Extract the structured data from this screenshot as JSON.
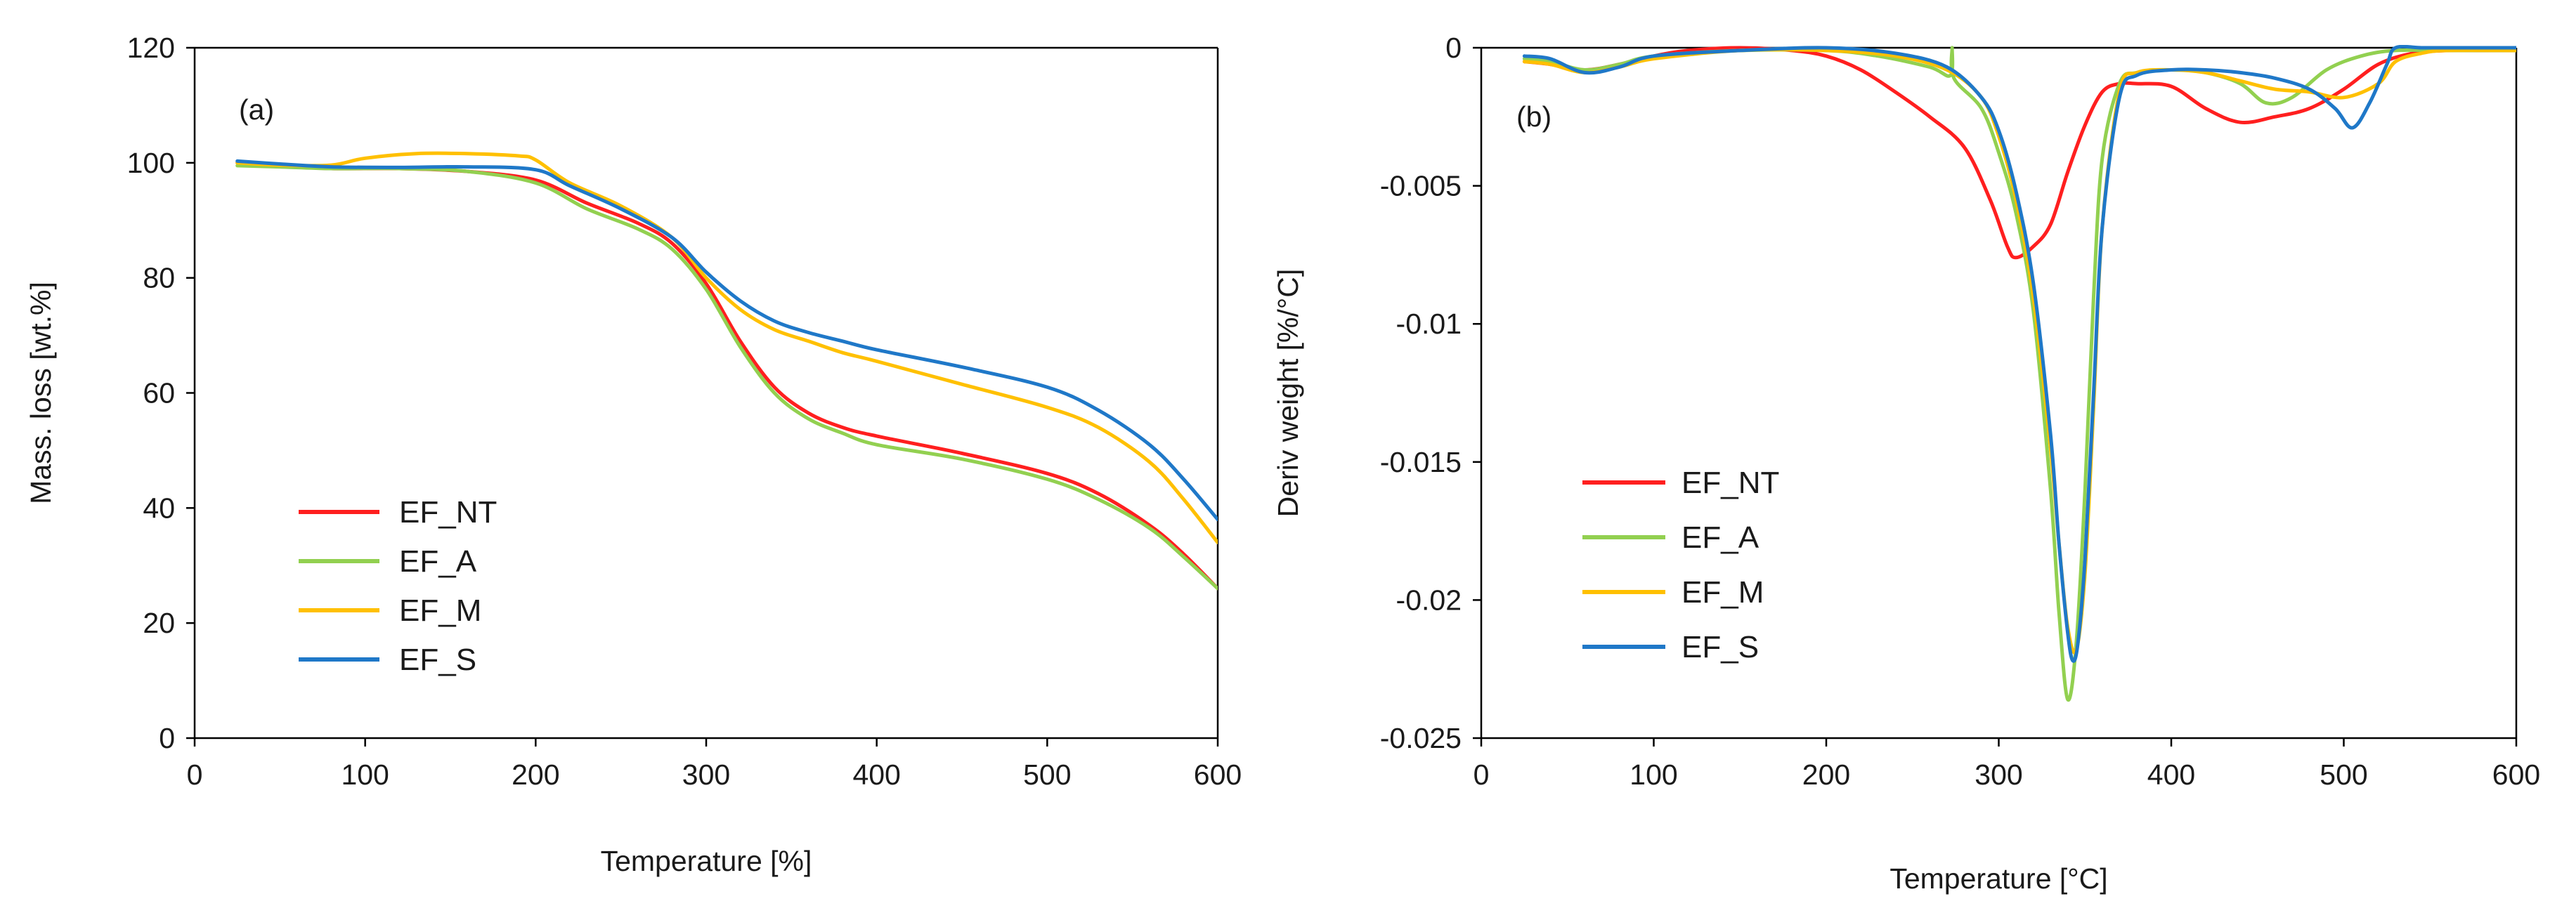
{
  "chart_data": [
    {
      "type": "line",
      "panel_label": "(a)",
      "xlabel": "Temperature [%]",
      "ylabel": "Mass. loss [wt.%]",
      "xlim": [
        0,
        600
      ],
      "ylim": [
        0,
        120
      ],
      "xticks": [
        0,
        100,
        200,
        300,
        400,
        500,
        600
      ],
      "yticks": [
        0,
        20,
        40,
        60,
        80,
        100,
        120
      ],
      "grid": false,
      "legend_position": "lower-left",
      "series": [
        {
          "name": "EF_NT",
          "color": "#ff1f1f",
          "x": [
            25,
            50,
            80,
            120,
            160,
            200,
            230,
            260,
            280,
            300,
            320,
            340,
            360,
            380,
            400,
            450,
            500,
            530,
            560,
            580,
            600
          ],
          "y": [
            100,
            99.5,
            99,
            99,
            98.5,
            97,
            93,
            89.5,
            86,
            79,
            69,
            61,
            56.5,
            54,
            52.5,
            49.5,
            46,
            42.5,
            37,
            32,
            26
          ]
        },
        {
          "name": "EF_A",
          "color": "#92d050",
          "x": [
            25,
            50,
            80,
            120,
            160,
            200,
            230,
            260,
            280,
            300,
            320,
            340,
            360,
            380,
            400,
            450,
            500,
            530,
            560,
            580,
            600
          ],
          "y": [
            99.5,
            99.3,
            99,
            99,
            98.5,
            96.5,
            92,
            88.5,
            85,
            78,
            68,
            60,
            55.5,
            53,
            51,
            48.5,
            45,
            41.5,
            36.5,
            31.5,
            26
          ]
        },
        {
          "name": "EF_M",
          "color": "#ffc000",
          "x": [
            25,
            50,
            80,
            100,
            130,
            160,
            190,
            200,
            220,
            250,
            280,
            300,
            320,
            340,
            360,
            380,
            400,
            450,
            500,
            530,
            560,
            580,
            600
          ],
          "y": [
            100,
            99.6,
            99.6,
            100.8,
            101.6,
            101.6,
            101.2,
            100.5,
            96.5,
            92.5,
            87,
            80,
            74.5,
            71,
            69,
            67,
            65.5,
            61.5,
            57.5,
            54,
            48,
            41.5,
            34
          ]
        },
        {
          "name": "EF_S",
          "color": "#1f78c8",
          "x": [
            25,
            50,
            80,
            120,
            160,
            200,
            220,
            250,
            280,
            300,
            320,
            340,
            360,
            380,
            400,
            450,
            500,
            530,
            560,
            580,
            600
          ],
          "y": [
            100.3,
            99.8,
            99.3,
            99.2,
            99.3,
            98.8,
            96,
            92,
            87,
            81,
            76,
            72.5,
            70.5,
            69,
            67.5,
            64.5,
            61,
            57,
            51,
            45,
            38
          ]
        }
      ]
    },
    {
      "type": "line",
      "panel_label": "(b)",
      "xlabel": "Temperature [°C]",
      "ylabel": "Deriv weight [%/°C]",
      "xlim": [
        0,
        600
      ],
      "ylim": [
        -0.025,
        0
      ],
      "xticks": [
        0,
        100,
        200,
        300,
        400,
        500,
        600
      ],
      "yticks": [
        0,
        -0.005,
        -0.01,
        -0.015,
        -0.02,
        -0.025
      ],
      "ytick_labels": [
        "0",
        "-0.005",
        "-0.01",
        "-0.015",
        "-0.02",
        "-0.025"
      ],
      "grid": false,
      "legend_position": "lower-left",
      "series": [
        {
          "name": "EF_NT",
          "color": "#ff1f1f",
          "x": [
            25,
            40,
            60,
            80,
            100,
            120,
            150,
            180,
            200,
            220,
            240,
            260,
            280,
            295,
            305,
            310,
            320,
            330,
            340,
            350,
            360,
            370,
            380,
            400,
            420,
            440,
            460,
            480,
            500,
            520,
            540,
            560,
            580,
            600
          ],
          "y": [
            -0.0005,
            -0.0006,
            -0.0008,
            -0.0006,
            -0.0003,
            -0.0001,
            0,
            -0.0001,
            -0.0003,
            -0.0008,
            -0.0016,
            -0.0025,
            -0.0036,
            -0.0055,
            -0.0072,
            -0.0076,
            -0.0072,
            -0.0064,
            -0.0045,
            -0.0028,
            -0.0016,
            -0.0013,
            -0.0013,
            -0.0014,
            -0.0022,
            -0.0027,
            -0.0025,
            -0.0022,
            -0.0015,
            -0.0006,
            -0.0002,
            -0.0001,
            -0.0001,
            -0.0001
          ]
        },
        {
          "name": "EF_A",
          "color": "#92d050",
          "x": [
            25,
            40,
            60,
            80,
            100,
            150,
            200,
            230,
            260,
            272,
            273,
            274,
            290,
            300,
            310,
            320,
            330,
            335,
            340,
            345,
            350,
            355,
            360,
            370,
            380,
            400,
            420,
            440,
            455,
            470,
            490,
            510,
            530,
            560,
            600
          ],
          "y": [
            -0.0004,
            -0.0005,
            -0.0008,
            -0.0006,
            -0.0003,
            -0.0001,
            -0.0001,
            -0.0003,
            -0.0007,
            -0.001,
            0,
            -0.0011,
            -0.0022,
            -0.0038,
            -0.006,
            -0.0095,
            -0.016,
            -0.0205,
            -0.0236,
            -0.0215,
            -0.016,
            -0.009,
            -0.004,
            -0.0013,
            -0.0009,
            -0.0008,
            -0.0009,
            -0.0013,
            -0.002,
            -0.0018,
            -0.0008,
            -0.0003,
            -0.0001,
            -0.0001,
            -0.0001
          ]
        },
        {
          "name": "EF_M",
          "color": "#ffc000",
          "x": [
            25,
            40,
            60,
            80,
            100,
            150,
            200,
            240,
            270,
            290,
            300,
            310,
            320,
            330,
            335,
            340,
            345,
            350,
            355,
            360,
            370,
            380,
            400,
            420,
            440,
            460,
            480,
            500,
            520,
            530,
            545,
            560,
            600
          ],
          "y": [
            -0.0005,
            -0.0006,
            -0.0009,
            -0.0007,
            -0.0004,
            -0.0001,
            -0.0001,
            -0.0003,
            -0.0008,
            -0.0018,
            -0.0032,
            -0.0055,
            -0.009,
            -0.0145,
            -0.018,
            -0.021,
            -0.0218,
            -0.019,
            -0.013,
            -0.0065,
            -0.0016,
            -0.0009,
            -0.0008,
            -0.0009,
            -0.0012,
            -0.0015,
            -0.0016,
            -0.0018,
            -0.0013,
            -0.0005,
            -0.0002,
            -0.0001,
            -0.0001
          ]
        },
        {
          "name": "EF_S",
          "color": "#1f78c8",
          "x": [
            25,
            40,
            60,
            80,
            100,
            150,
            200,
            240,
            270,
            290,
            300,
            310,
            320,
            330,
            335,
            340,
            343,
            346,
            350,
            355,
            360,
            370,
            380,
            400,
            420,
            440,
            460,
            480,
            495,
            505,
            515,
            525,
            530,
            545,
            560,
            600
          ],
          "y": [
            -0.0003,
            -0.0004,
            -0.0009,
            -0.0007,
            -0.0003,
            -0.0001,
            0,
            -0.0002,
            -0.0007,
            -0.0018,
            -0.003,
            -0.0052,
            -0.0085,
            -0.014,
            -0.018,
            -0.0212,
            -0.0222,
            -0.0215,
            -0.0185,
            -0.0125,
            -0.0065,
            -0.0018,
            -0.001,
            -0.0008,
            -0.0008,
            -0.0009,
            -0.0011,
            -0.0015,
            -0.0022,
            -0.0029,
            -0.002,
            -0.0006,
            0,
            0,
            0,
            0
          ]
        }
      ]
    }
  ]
}
